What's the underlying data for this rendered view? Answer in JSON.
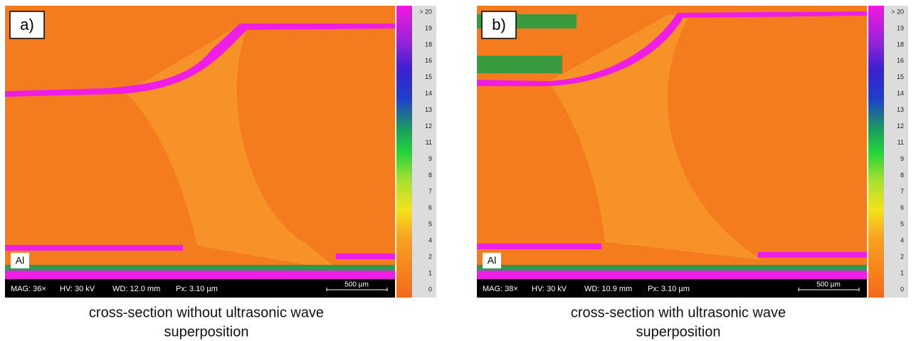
{
  "panels": [
    {
      "label": "a)",
      "material_label": "Al",
      "info": {
        "mag": "MAG: 36×",
        "hv": "HV: 30 kV",
        "wd": "WD: 12.0 mm",
        "px": "Px: 3.10 µm"
      },
      "scale_bar": "500 µm",
      "colorbar_ticks": [
        "> 20",
        "19",
        "18",
        "16",
        "15",
        "14",
        "13",
        "12",
        "11",
        "9",
        "8",
        "7",
        "6",
        "5",
        "4",
        "2",
        "1",
        "0"
      ],
      "caption": [
        "cross-section without ultrasonic wave",
        "superposition"
      ]
    },
    {
      "label": "b)",
      "material_label": "Al",
      "info": {
        "mag": "MAG: 38×",
        "hv": "HV: 30 kV",
        "wd": "WD: 10.9 mm",
        "px": "Px: 3.10 µm"
      },
      "scale_bar": "500 µm",
      "colorbar_ticks": [
        "> 20",
        "19",
        "18",
        "16",
        "15",
        "14",
        "13",
        "12",
        "11",
        "9",
        "8",
        "7",
        "6",
        "5",
        "4",
        "2",
        "1",
        "0"
      ],
      "caption": [
        "cross-section with ultrasonic wave",
        "superposition"
      ]
    }
  ]
}
